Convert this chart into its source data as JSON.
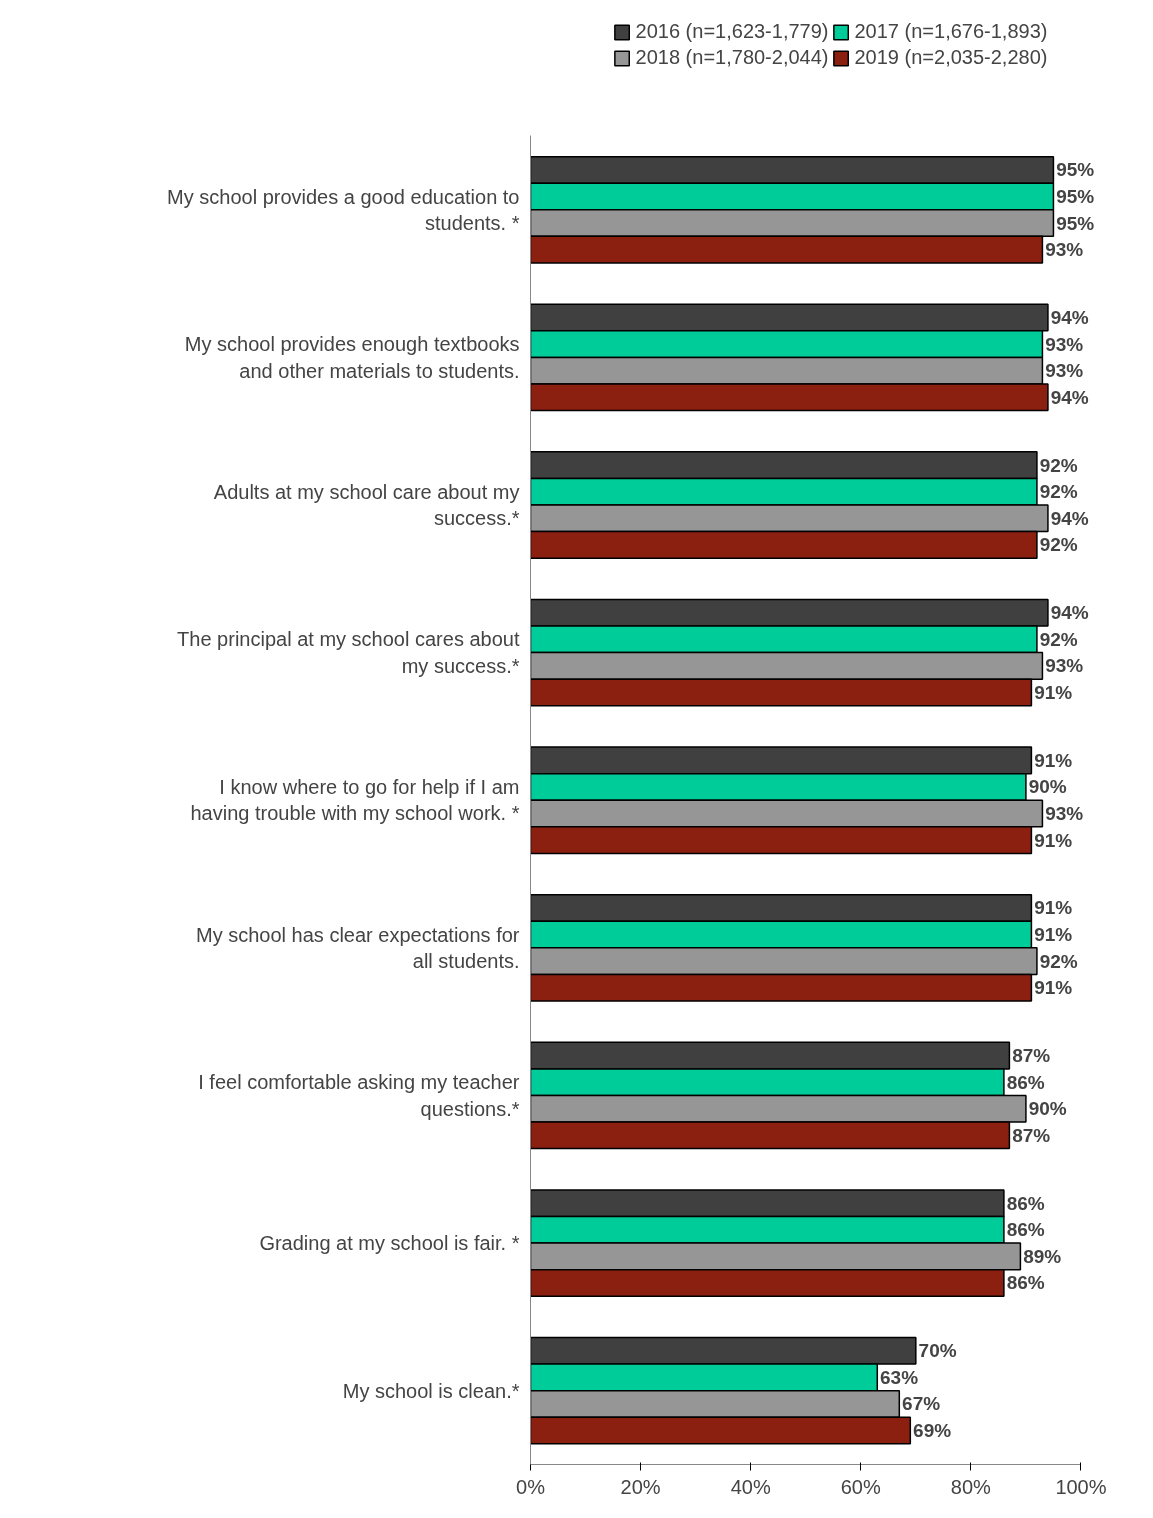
{
  "chart_data": {
    "type": "bar",
    "orientation": "horizontal",
    "legend": "top",
    "categories": [
      "My school provides a good education to students. *",
      "My school provides enough textbooks and other materials to students.",
      "Adults at my school care about my success.*",
      "The principal at my school cares about my success.*",
      "I know where to go for help if I am having trouble with my school work. *",
      "My school has clear expectations for all students.",
      "I feel comfortable asking my teacher questions.*",
      "Grading at my school is fair. *",
      "My school is clean.*"
    ],
    "series": [
      {
        "name": "2016 (n=1,623-1,779)",
        "color": "#404040",
        "values": [
          95,
          94,
          92,
          94,
          91,
          91,
          87,
          86,
          70
        ],
        "value_labels": [
          "95%",
          "94%",
          "92%",
          "94%",
          "91%",
          "91%",
          "87%",
          "86%",
          "70%"
        ]
      },
      {
        "name": "2017 (n=1,676-1,893)",
        "color": "#00cc99",
        "values": [
          95,
          93,
          92,
          92,
          90,
          91,
          86,
          86,
          63
        ],
        "value_labels": [
          "95%",
          "93%",
          "92%",
          "92%",
          "90%",
          "91%",
          "86%",
          "86%",
          "63%"
        ]
      },
      {
        "name": "2018 (n=1,780-2,044)",
        "color": "#969696",
        "values": [
          95,
          93,
          94,
          93,
          93,
          92,
          90,
          89,
          67
        ],
        "value_labels": [
          "95%",
          "93%",
          "94%",
          "93%",
          "93%",
          "92%",
          "90%",
          "89%",
          "67%"
        ]
      },
      {
        "name": "2019 (n=2,035-2,280)",
        "color": "#8b2010",
        "values": [
          93,
          94,
          92,
          91,
          91,
          91,
          87,
          86,
          69
        ],
        "value_labels": [
          "93%",
          "94%",
          "92%",
          "91%",
          "91%",
          "91%",
          "87%",
          "86%",
          "69%"
        ]
      }
    ],
    "xlim": [
      0,
      100
    ],
    "xticks": [
      {
        "value": 0,
        "label": "0%"
      },
      {
        "value": 20,
        "label": "20%"
      },
      {
        "value": 40,
        "label": "40%"
      },
      {
        "value": 60,
        "label": "60%"
      },
      {
        "value": 80,
        "label": "80%"
      },
      {
        "value": 100,
        "label": "100%"
      }
    ]
  }
}
